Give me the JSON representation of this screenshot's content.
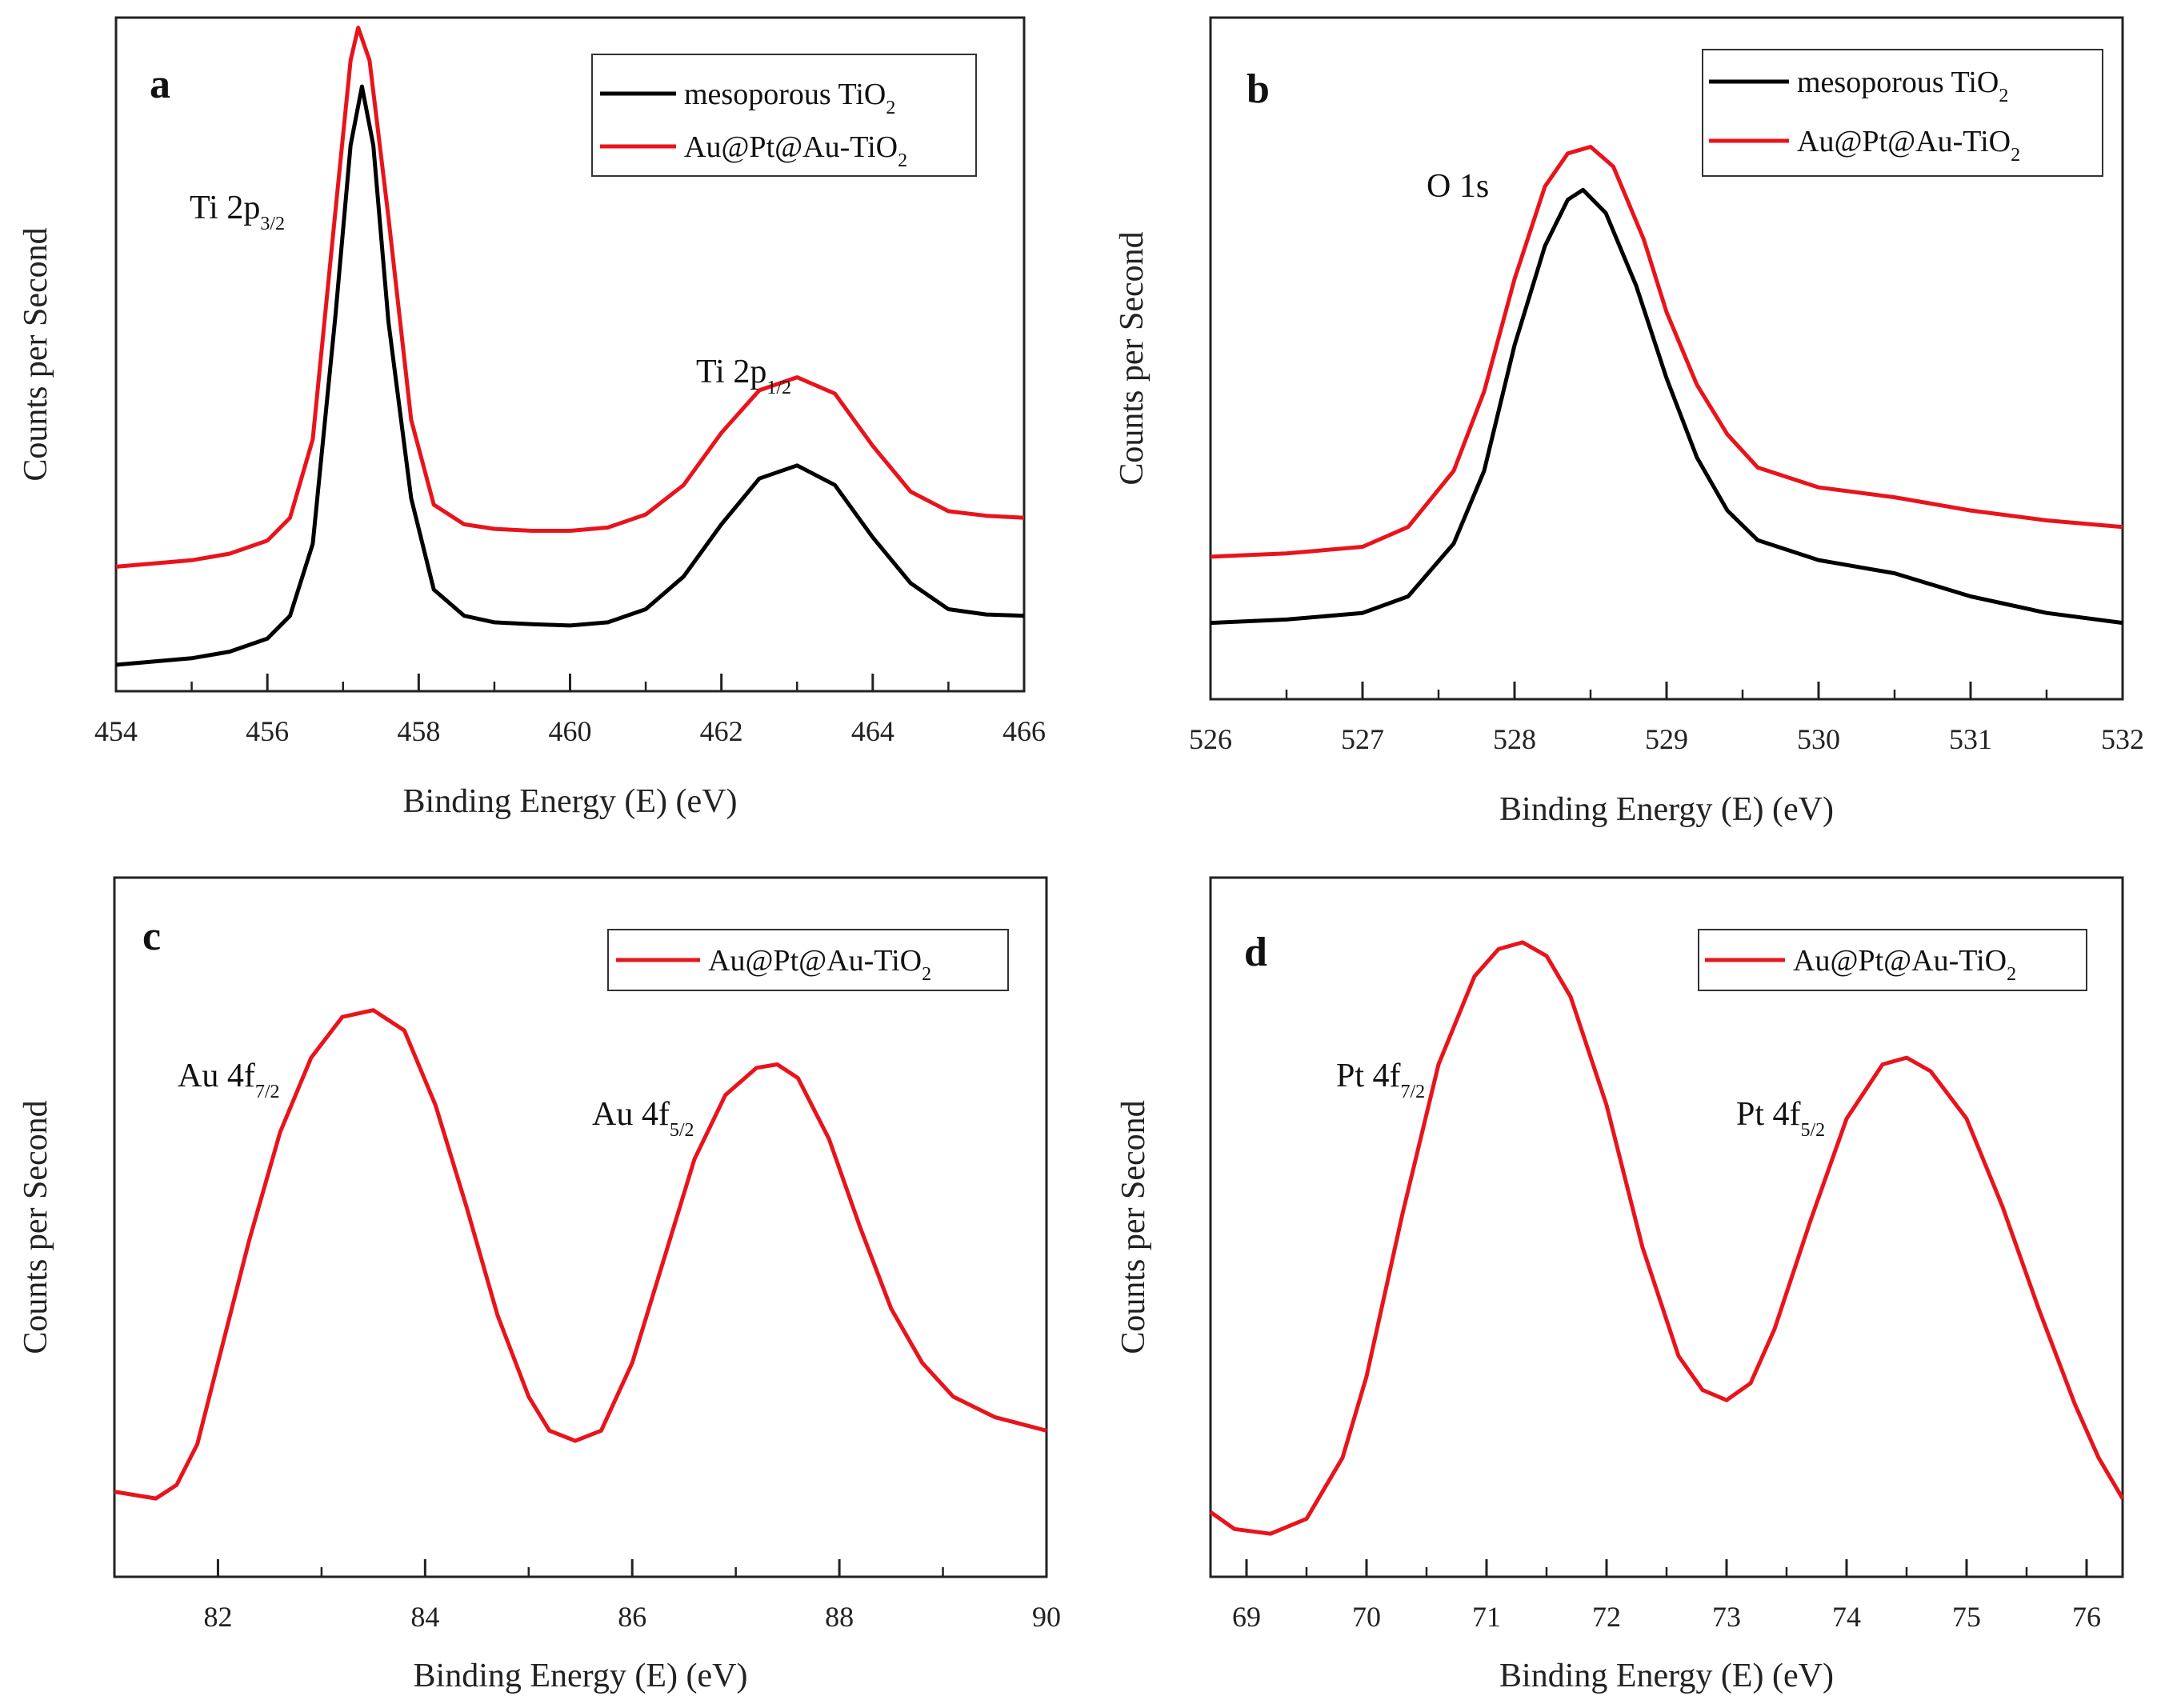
{
  "chart_data": [
    {
      "type": "line",
      "panel": "a",
      "xlabel": "Binding Energy (E) (eV)",
      "ylabel": "Counts per Second",
      "xlim": [
        454,
        466
      ],
      "ylim": [
        0,
        100
      ],
      "major_ticks": [
        454,
        456,
        458,
        460,
        462,
        464,
        466
      ],
      "minor_ticks": [
        455,
        457,
        459,
        461,
        463,
        465
      ],
      "legend": [
        {
          "text": "mesoporous TiO",
          "sub": "2",
          "color": "#000000"
        },
        {
          "text": "Au@Pt@Au-TiO",
          "sub": "2",
          "color": "#e8141c"
        }
      ],
      "annotations": [
        {
          "text": "Ti 2p",
          "sub": "3/2",
          "x": 455.0,
          "y": 83
        },
        {
          "text": "Ti 2p",
          "sub": "1/2",
          "x": 461.7,
          "y": 52
        }
      ],
      "series": [
        {
          "name": "mesoporous TiO2",
          "color": "#000000",
          "x": [
            454,
            455,
            455.5,
            456,
            456.3,
            456.6,
            456.9,
            457.1,
            457.25,
            457.4,
            457.6,
            457.9,
            458.2,
            458.6,
            459,
            459.5,
            460,
            460.5,
            461,
            461.5,
            462,
            462.5,
            463,
            463.5,
            464,
            464.5,
            465,
            465.5,
            466
          ],
          "y": [
            2.5,
            3.5,
            4.5,
            6.5,
            10,
            21,
            56,
            82,
            91,
            82,
            55,
            28,
            14,
            10,
            9,
            8.7,
            8.5,
            9,
            11,
            16,
            24,
            31,
            33,
            30,
            22,
            15,
            11,
            10.2,
            10
          ]
        },
        {
          "name": "Au@Pt@Au-TiO2",
          "color": "#e8141c",
          "x": [
            454,
            455,
            455.5,
            456,
            456.3,
            456.6,
            456.9,
            457.1,
            457.2,
            457.35,
            457.6,
            457.9,
            458.2,
            458.6,
            459,
            459.5,
            460,
            460.5,
            461,
            461.5,
            462,
            462.5,
            463,
            463.5,
            464,
            464.5,
            465,
            465.5,
            466
          ],
          "y": [
            17.5,
            18.5,
            19.5,
            21.5,
            25,
            37,
            72,
            95,
            100,
            95,
            71,
            40,
            27,
            24,
            23.3,
            23,
            23,
            23.5,
            25.5,
            30,
            38,
            44.5,
            46.5,
            44,
            36,
            29,
            26,
            25.3,
            25
          ]
        }
      ]
    },
    {
      "type": "line",
      "panel": "b",
      "xlabel": "Binding Energy (E) (eV)",
      "ylabel": "Counts per Second",
      "xlim": [
        526,
        532
      ],
      "ylim": [
        0,
        100
      ],
      "major_ticks": [
        526,
        527,
        528,
        529,
        530,
        531,
        532
      ],
      "minor_ticks": [
        526.5,
        527.5,
        528.5,
        529.5,
        530.5,
        531.5
      ],
      "legend": [
        {
          "text": "mesoporous TiO",
          "sub": "2",
          "color": "#000000"
        },
        {
          "text": "Au@Pt@Au-TiO",
          "sub": "2",
          "color": "#e8141c"
        }
      ],
      "annotations": [
        {
          "text": "O 1s",
          "sub": "",
          "x": 527.4,
          "y": 74
        }
      ],
      "series": [
        {
          "name": "mesoporous TiO2",
          "color": "#000000",
          "x": [
            526,
            526.5,
            527,
            527.3,
            527.6,
            527.8,
            528,
            528.2,
            528.35,
            528.45,
            528.6,
            528.8,
            529,
            529.2,
            529.4,
            529.6,
            530,
            530.5,
            531,
            531.5,
            532
          ],
          "y": [
            10,
            10.5,
            11.5,
            14,
            22,
            33,
            52,
            67,
            74,
            75.5,
            72,
            61,
            47,
            35,
            27,
            22.5,
            19.5,
            17.5,
            14,
            11.5,
            10
          ]
        },
        {
          "name": "Au@Pt@Au-TiO2",
          "color": "#e8141c",
          "x": [
            526,
            526.5,
            527,
            527.3,
            527.6,
            527.8,
            528,
            528.2,
            528.35,
            528.5,
            528.65,
            528.85,
            529,
            529.2,
            529.4,
            529.6,
            530,
            530.5,
            531,
            531.5,
            532
          ],
          "y": [
            20,
            20.5,
            21.5,
            24.5,
            33,
            45,
            62,
            76,
            81,
            82,
            79,
            68,
            57,
            46,
            38.5,
            33.5,
            30.5,
            29,
            27,
            25.5,
            24.5
          ]
        }
      ]
    },
    {
      "type": "line",
      "panel": "c",
      "xlabel": "Binding Energy (E) (eV)",
      "ylabel": "Counts per Second",
      "xlim": [
        81,
        90
      ],
      "ylim": [
        0,
        100
      ],
      "major_ticks": [
        82,
        84,
        86,
        88,
        90
      ],
      "minor_ticks": [
        83,
        85,
        87,
        89
      ],
      "legend": [
        {
          "text": "Au@Pt@Au-TiO",
          "sub": "2",
          "color": "#e8141c"
        }
      ],
      "annotations": [
        {
          "text": "Au 4f",
          "sub": "7/2",
          "x": 81.6,
          "y": 74
        },
        {
          "text": "Au 4f",
          "sub": "5/2",
          "x": 85.8,
          "y": 65
        }
      ],
      "series": [
        {
          "name": "Au@Pt@Au-TiO2",
          "color": "#e8141c",
          "x": [
            81,
            81.2,
            81.4,
            81.6,
            81.8,
            82,
            82.3,
            82.6,
            82.9,
            83.2,
            83.5,
            83.8,
            84.1,
            84.4,
            84.7,
            85,
            85.2,
            85.45,
            85.7,
            86,
            86.3,
            86.6,
            86.9,
            87.2,
            87.4,
            87.6,
            87.9,
            88.2,
            88.5,
            88.8,
            89.1,
            89.5,
            90
          ],
          "y": [
            11,
            10.5,
            10,
            12,
            18,
            30,
            48,
            64,
            75,
            81,
            82,
            79,
            68,
            53,
            37,
            25,
            20,
            18.5,
            20,
            30,
            45,
            60,
            69.5,
            73.5,
            74,
            72,
            63,
            50,
            38,
            30,
            25,
            22,
            20
          ]
        }
      ]
    },
    {
      "type": "line",
      "panel": "d",
      "xlabel": "Binding Energy (E) (eV)",
      "ylabel": "Counts per Second",
      "xlim": [
        68.7,
        76.3
      ],
      "ylim": [
        0,
        100
      ],
      "major_ticks": [
        69,
        70,
        71,
        72,
        73,
        74,
        75,
        76
      ],
      "minor_ticks": [
        69.5,
        70.5,
        71.5,
        72.5,
        73.5,
        74.5,
        75.5
      ],
      "legend": [
        {
          "text": "Au@Pt@Au-TiO",
          "sub": "2",
          "color": "#e8141c"
        }
      ],
      "annotations": [
        {
          "text": "Pt 4f",
          "sub": "7/2",
          "x": 69.8,
          "y": 76
        },
        {
          "text": "Pt 4f",
          "sub": "5/2",
          "x": 73.0,
          "y": 65
        }
      ],
      "series": [
        {
          "name": "Au@Pt@Au-TiO2",
          "color": "#e8141c",
          "x": [
            68.7,
            68.9,
            69.2,
            69.5,
            69.8,
            70,
            70.3,
            70.6,
            70.9,
            71.1,
            71.3,
            71.5,
            71.7,
            72,
            72.3,
            72.6,
            72.8,
            73,
            73.2,
            73.4,
            73.7,
            74,
            74.3,
            74.5,
            74.7,
            75,
            75.3,
            75.6,
            75.9,
            76.1,
            76.3
          ],
          "y": [
            8,
            5.5,
            4.8,
            7,
            16,
            28,
            52,
            74,
            87,
            91,
            92,
            90,
            84,
            68,
            47,
            31,
            26,
            24.5,
            27,
            35,
            51,
            66,
            74,
            75,
            73,
            66,
            53,
            38,
            24,
            16,
            10
          ]
        }
      ]
    }
  ]
}
